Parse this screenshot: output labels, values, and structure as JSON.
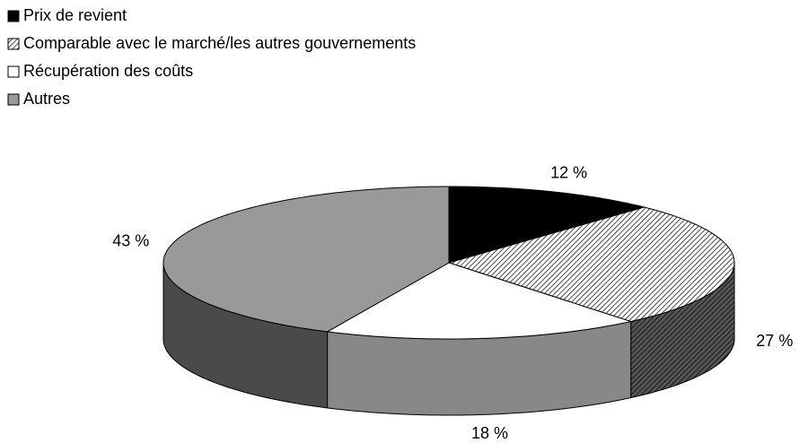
{
  "chart_data": {
    "type": "pie3d",
    "categories": [
      "Prix de revient",
      "Comparable avec le marché/les autres gouvernements",
      "Récupération des coûts",
      "Autres"
    ],
    "values": [
      12,
      27,
      18,
      43
    ],
    "value_labels": [
      "12 %",
      "27 %",
      "18 %",
      "43 %"
    ],
    "colors": [
      "#000000",
      "#ffffff",
      "#ffffff",
      "#999999"
    ],
    "side_colors": [
      "#000000",
      "#555555",
      "#888888",
      "#4a4a4a"
    ],
    "patterns": [
      null,
      "diagonal",
      null,
      null
    ],
    "legend": "top-left"
  }
}
